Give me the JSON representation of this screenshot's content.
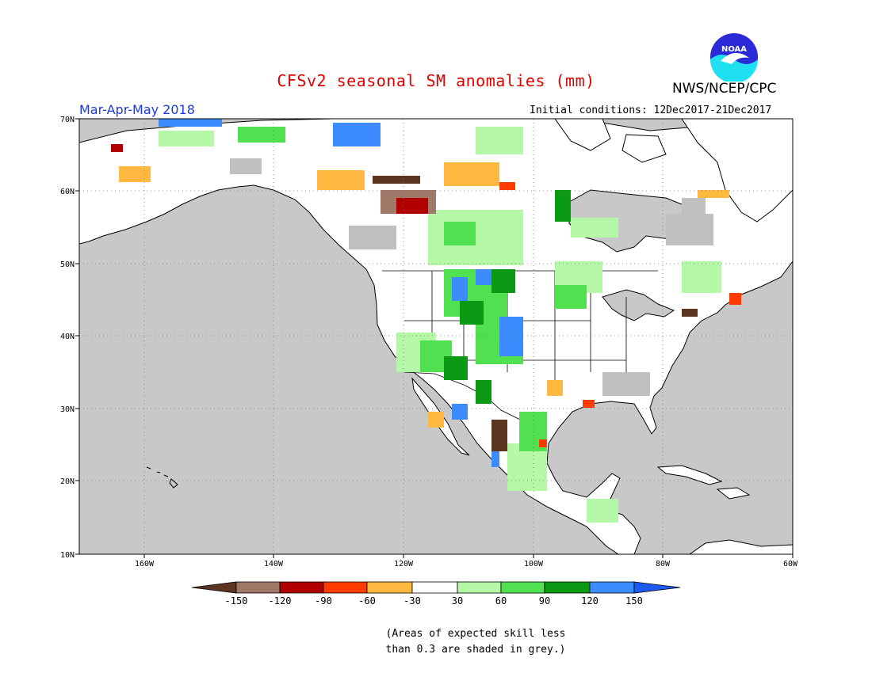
{
  "header": {
    "title": "CFSv2 seasonal SM anomalies (mm)",
    "season": "Mar-Apr-May 2018",
    "initial_conditions": "Initial conditions: 12Dec2017-21Dec2017",
    "organization": "NWS/NCEP/CPC",
    "logo_text": "NOAA"
  },
  "map": {
    "lon_labels": [
      "160W",
      "140W",
      "120W",
      "100W",
      "80W",
      "60W"
    ],
    "lat_labels": [
      "70N",
      "60N",
      "50N",
      "40N",
      "30N",
      "20N",
      "10N"
    ],
    "lon_range": [
      -172,
      -60
    ],
    "lat_range": [
      10,
      70
    ],
    "gridlines": "dotted",
    "ocean_color": "#c8c8c8",
    "land_color": "#ffffff"
  },
  "legend": {
    "ticks": [
      "-150",
      "-120",
      "-90",
      "-60",
      "-30",
      "30",
      "60",
      "90",
      "120",
      "150"
    ],
    "colors": [
      "#5c3420",
      "#a07868",
      "#b00000",
      "#ff3c00",
      "#ffb840",
      "#ffffff",
      "#b4f8a8",
      "#50e050",
      "#0c9a14",
      "#3c8cff",
      "#1c5af0"
    ]
  },
  "note": {
    "line1": "(Areas of expected skill less",
    "line2": "than 0.3 are shaded in grey.)"
  }
}
